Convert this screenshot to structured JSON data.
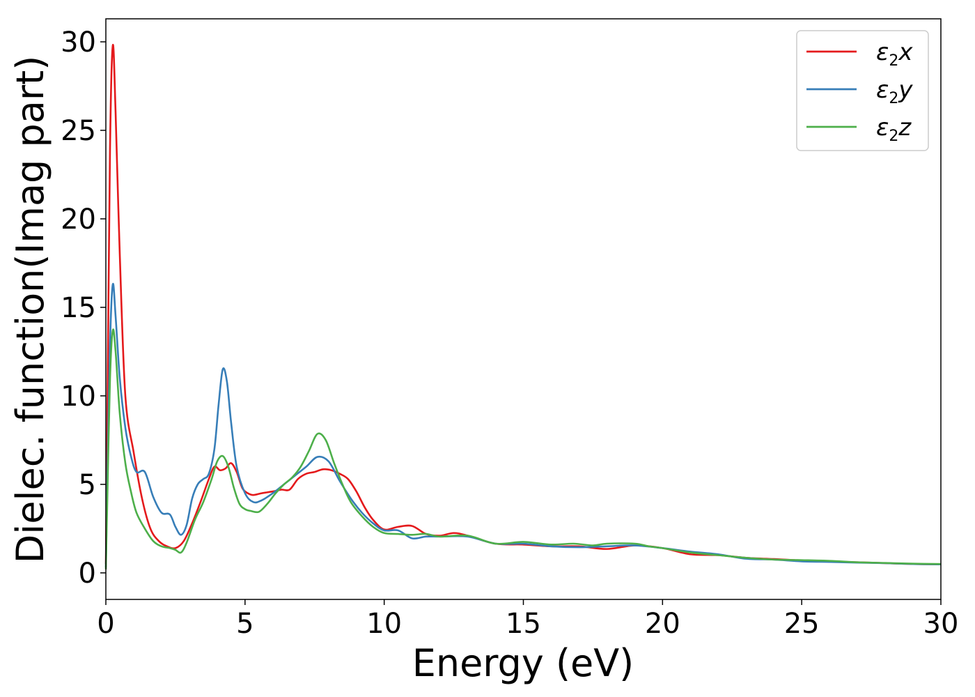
{
  "chart_data": {
    "type": "line",
    "title": "",
    "xlabel": "Energy (eV)",
    "ylabel": "Dielec. function(Imag part)",
    "xlim": [
      0,
      30
    ],
    "ylim": [
      -1.5,
      31.3
    ],
    "xticks": [
      "0",
      "5",
      "10",
      "15",
      "20",
      "25",
      "30"
    ],
    "yticks": [
      "0",
      "5",
      "10",
      "15",
      "20",
      "25",
      "30"
    ],
    "grid": false,
    "legend_position": "top-right",
    "series": [
      {
        "name": "ε2x",
        "legend": {
          "base": "ε",
          "sub": "2",
          "tail": "x"
        },
        "color": "#e41a1c",
        "x": [
          0,
          0.05,
          0.15,
          0.25,
          0.35,
          0.5,
          0.7,
          1.0,
          1.3,
          1.6,
          1.9,
          2.2,
          2.5,
          2.8,
          3.1,
          3.4,
          3.7,
          3.9,
          4.1,
          4.3,
          4.5,
          4.7,
          4.9,
          5.1,
          5.3,
          5.6,
          6.0,
          6.3,
          6.6,
          6.9,
          7.2,
          7.5,
          7.8,
          8.1,
          8.4,
          8.7,
          9.0,
          9.3,
          9.6,
          10.0,
          10.5,
          11.0,
          11.5,
          12.0,
          12.5,
          13.0,
          14.0,
          15.0,
          16.0,
          17.0,
          18.0,
          19.0,
          20.0,
          21.0,
          22.0,
          23.0,
          24.0,
          25.0,
          26.0,
          27.0,
          28.0,
          29.0,
          30.0
        ],
        "y": [
          0.5,
          8,
          24,
          29.8,
          26,
          18,
          10,
          6.8,
          4.2,
          2.5,
          1.8,
          1.5,
          1.4,
          1.8,
          2.8,
          4.0,
          5.3,
          6.0,
          5.8,
          5.9,
          6.2,
          5.7,
          4.8,
          4.5,
          4.4,
          4.5,
          4.6,
          4.7,
          4.7,
          5.3,
          5.6,
          5.7,
          5.85,
          5.8,
          5.6,
          5.3,
          4.6,
          3.7,
          3.0,
          2.45,
          2.6,
          2.65,
          2.2,
          2.1,
          2.25,
          2.1,
          1.65,
          1.6,
          1.5,
          1.5,
          1.35,
          1.55,
          1.4,
          1.05,
          1.0,
          0.85,
          0.78,
          0.7,
          0.65,
          0.6,
          0.55,
          0.5,
          0.48
        ]
      },
      {
        "name": "ε2y",
        "legend": {
          "base": "ε",
          "sub": "2",
          "tail": "y"
        },
        "color": "#377eb8",
        "x": [
          0,
          0.05,
          0.15,
          0.25,
          0.35,
          0.5,
          0.7,
          0.9,
          1.1,
          1.4,
          1.7,
          2.0,
          2.3,
          2.5,
          2.7,
          2.9,
          3.1,
          3.3,
          3.5,
          3.7,
          3.9,
          4.05,
          4.2,
          4.35,
          4.5,
          4.7,
          5.0,
          5.3,
          5.6,
          6.0,
          6.4,
          6.8,
          7.2,
          7.6,
          8.0,
          8.4,
          8.8,
          9.2,
          9.6,
          10.0,
          10.5,
          11.0,
          11.5,
          12.0,
          13.0,
          14.0,
          15.0,
          16.0,
          17.0,
          18.0,
          19.0,
          20.0,
          21.0,
          22.0,
          23.0,
          24.0,
          25.0,
          26.0,
          27.0,
          28.0,
          29.0,
          30.0
        ],
        "y": [
          0.3,
          5,
          13,
          16.3,
          14.5,
          11,
          8.2,
          6.6,
          5.7,
          5.7,
          4.3,
          3.4,
          3.3,
          2.6,
          2.15,
          2.7,
          4.2,
          5.0,
          5.3,
          5.6,
          7.0,
          9.5,
          11.5,
          10.8,
          8.5,
          6.0,
          4.5,
          4.0,
          4.1,
          4.5,
          5.0,
          5.5,
          6.0,
          6.55,
          6.3,
          5.2,
          4.2,
          3.4,
          2.8,
          2.4,
          2.4,
          1.95,
          2.05,
          2.05,
          2.05,
          1.65,
          1.65,
          1.5,
          1.45,
          1.5,
          1.55,
          1.4,
          1.2,
          1.05,
          0.8,
          0.75,
          0.65,
          0.62,
          0.58,
          0.55,
          0.5,
          0.48
        ]
      },
      {
        "name": "ε2z",
        "legend": {
          "base": "ε",
          "sub": "2",
          "tail": "z"
        },
        "color": "#4daf4a",
        "x": [
          0,
          0.05,
          0.15,
          0.25,
          0.35,
          0.5,
          0.7,
          0.9,
          1.1,
          1.4,
          1.7,
          2.0,
          2.3,
          2.5,
          2.7,
          2.9,
          3.2,
          3.5,
          3.8,
          4.0,
          4.2,
          4.4,
          4.6,
          4.8,
          5.0,
          5.2,
          5.5,
          5.8,
          6.1,
          6.4,
          6.7,
          7.0,
          7.3,
          7.6,
          7.9,
          8.2,
          8.5,
          8.8,
          9.2,
          9.6,
          10.0,
          10.5,
          11.0,
          11.5,
          12.0,
          13.0,
          14.0,
          15.0,
          16.0,
          16.8,
          17.5,
          18.0,
          19.0,
          19.5,
          20.0,
          21.0,
          22.0,
          23.0,
          24.0,
          25.0,
          26.0,
          27.0,
          28.0,
          29.0,
          30.0
        ],
        "y": [
          0.2,
          4,
          11,
          13.7,
          12.5,
          9,
          6.2,
          4.6,
          3.4,
          2.5,
          1.8,
          1.5,
          1.4,
          1.3,
          1.15,
          1.7,
          3.0,
          4.0,
          5.3,
          6.3,
          6.6,
          6.0,
          4.8,
          3.9,
          3.6,
          3.5,
          3.45,
          3.9,
          4.5,
          5.0,
          5.4,
          6.0,
          6.9,
          7.85,
          7.5,
          6.2,
          5.0,
          4.0,
          3.2,
          2.6,
          2.25,
          2.2,
          2.15,
          2.2,
          2.05,
          2.1,
          1.65,
          1.75,
          1.6,
          1.65,
          1.55,
          1.65,
          1.65,
          1.5,
          1.4,
          1.15,
          1.0,
          0.85,
          0.75,
          0.72,
          0.68,
          0.6,
          0.56,
          0.52,
          0.5
        ]
      }
    ]
  }
}
